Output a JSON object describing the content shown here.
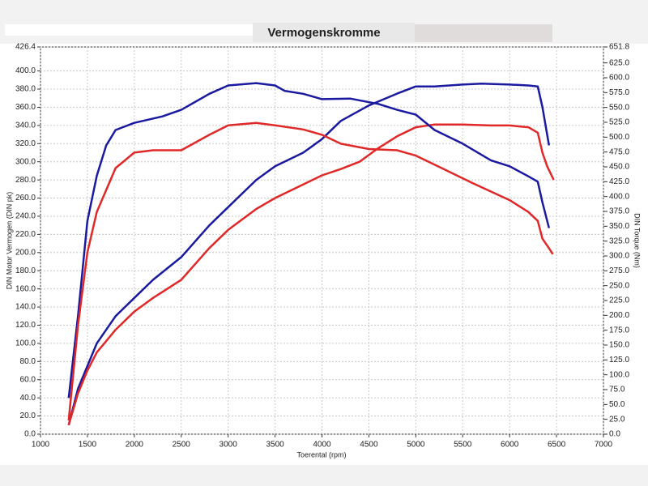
{
  "chart_data": {
    "type": "line",
    "title": "Vermogenskromme",
    "x_label": "Toerental (rpm)",
    "y_label": "DIN Motor Vermogen (DIN pk)",
    "y2_label": "DIN Torque (Nm)",
    "xlim": [
      1000,
      7000
    ],
    "xticks": [
      1000,
      1500,
      2000,
      2500,
      3000,
      3500,
      4000,
      4500,
      5000,
      5500,
      6000,
      6500,
      7000
    ],
    "ylim": [
      0,
      426.4
    ],
    "yticks": [
      {
        "value": 0,
        "label": "0.0"
      },
      {
        "value": 20,
        "label": "20.0"
      },
      {
        "value": 40,
        "label": "40.0"
      },
      {
        "value": 60,
        "label": "60.0"
      },
      {
        "value": 80,
        "label": "80.0"
      },
      {
        "value": 100,
        "label": "100.0"
      },
      {
        "value": 120,
        "label": "120.0"
      },
      {
        "value": 140,
        "label": "140.0"
      },
      {
        "value": 160,
        "label": "160.0"
      },
      {
        "value": 180,
        "label": "180.0"
      },
      {
        "value": 200,
        "label": "200.0"
      },
      {
        "value": 220,
        "label": "220.0"
      },
      {
        "value": 240,
        "label": "240.0"
      },
      {
        "value": 260,
        "label": "260.0"
      },
      {
        "value": 280,
        "label": "280.0"
      },
      {
        "value": 300,
        "label": "300.0"
      },
      {
        "value": 320,
        "label": "320.0"
      },
      {
        "value": 340,
        "label": "340.0"
      },
      {
        "value": 360,
        "label": "360.0"
      },
      {
        "value": 380,
        "label": "380.0"
      },
      {
        "value": 400,
        "label": "400.0"
      },
      426.4
    ],
    "y2lim": [
      0,
      651.8
    ],
    "y2ticks": [
      {
        "value": 0,
        "label": "0.0"
      },
      {
        "value": 25,
        "label": "25.0"
      },
      {
        "value": 50,
        "label": "50.0"
      },
      {
        "value": 75,
        "label": "75.0"
      },
      {
        "value": 100,
        "label": "100.0"
      },
      {
        "value": 125,
        "label": "125.0"
      },
      {
        "value": 150,
        "label": "150.0"
      },
      {
        "value": 175,
        "label": "175.0"
      },
      {
        "value": 200,
        "label": "200.0"
      },
      {
        "value": 225,
        "label": "225.0"
      },
      {
        "value": 250,
        "label": "250.0"
      },
      {
        "value": 275,
        "label": "275.0"
      },
      {
        "value": 300,
        "label": "300.0"
      },
      {
        "value": 325,
        "label": "325.0"
      },
      {
        "value": 350,
        "label": "350.0"
      },
      {
        "value": 375,
        "label": "375.0"
      },
      {
        "value": 400,
        "label": "400.0"
      },
      {
        "value": 425,
        "label": "425.0"
      },
      {
        "value": 450,
        "label": "450.0"
      },
      {
        "value": 475,
        "label": "475.0"
      },
      {
        "value": 500,
        "label": "500.0"
      },
      {
        "value": 525,
        "label": "525.0"
      },
      {
        "value": 550,
        "label": "550.0"
      },
      {
        "value": 575,
        "label": "575.0"
      },
      {
        "value": 600,
        "label": "600.0"
      },
      {
        "value": 625,
        "label": "625.0"
      },
      651.8
    ],
    "grid": true,
    "series": [
      {
        "color": "#1a1aa0",
        "axis": "y",
        "x": [
          1300,
          1400,
          1500,
          1600,
          1800,
          2000,
          2200,
          2500,
          2800,
          3000,
          3300,
          3500,
          3800,
          4000,
          4200,
          4500,
          4800,
          5000,
          5200,
          5500,
          5700,
          6000,
          6200,
          6300,
          6350,
          6420
        ],
        "values": [
          10,
          50,
          75,
          100,
          130,
          150,
          170,
          195,
          230,
          250,
          280,
          295,
          310,
          325,
          345,
          362,
          375,
          383,
          383,
          385,
          386,
          385,
          384,
          383,
          360,
          318
        ]
      },
      {
        "color": "#e02828",
        "axis": "y",
        "x": [
          1300,
          1400,
          1500,
          1600,
          1800,
          2000,
          2200,
          2500,
          2800,
          3000,
          3300,
          3500,
          3800,
          4000,
          4200,
          4400,
          4600,
          4800,
          5000,
          5200,
          5500,
          5800,
          6000,
          6200,
          6300,
          6350,
          6400,
          6470
        ],
        "values": [
          10,
          45,
          70,
          90,
          115,
          135,
          150,
          170,
          205,
          225,
          248,
          260,
          275,
          285,
          292,
          300,
          315,
          328,
          338,
          341,
          341,
          340,
          340,
          338,
          332,
          310,
          295,
          280
        ]
      },
      {
        "color": "#1a1aa0",
        "axis": "y2",
        "x": [
          1300,
          1400,
          1500,
          1600,
          1700,
          1800,
          2000,
          2300,
          2500,
          2800,
          3000,
          3300,
          3500,
          3600,
          3800,
          4000,
          4300,
          4600,
          4800,
          5000,
          5200,
          5500,
          5800,
          6000,
          6200,
          6300,
          6350,
          6420
        ],
        "values": [
          61,
          199,
          359,
          435,
          486,
          512,
          524,
          535,
          546,
          573,
          587,
          591,
          587,
          578,
          573,
          564,
          565,
          556,
          546,
          538,
          512,
          489,
          461,
          451,
          434,
          425,
          390,
          347
        ]
      },
      {
        "color": "#e02828",
        "axis": "y2",
        "x": [
          1300,
          1400,
          1500,
          1600,
          1800,
          2000,
          2200,
          2500,
          2800,
          3000,
          3300,
          3500,
          3800,
          4000,
          4200,
          4500,
          4800,
          5000,
          5300,
          5600,
          6000,
          6200,
          6300,
          6350,
          6420,
          6460
        ],
        "values": [
          23,
          183,
          306,
          374,
          448,
          474,
          478,
          478,
          504,
          520,
          524,
          520,
          513,
          504,
          489,
          480,
          478,
          469,
          446,
          423,
          394,
          374,
          359,
          329,
          313,
          303
        ]
      }
    ]
  }
}
